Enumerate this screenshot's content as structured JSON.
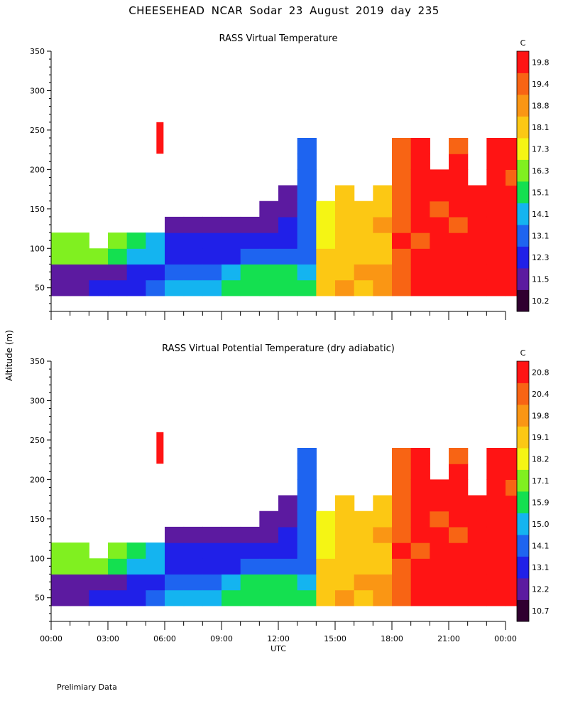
{
  "header": {
    "title": "CHEESEHEAD   NCAR Sodar   23 August 2019   day 235"
  },
  "footer": {
    "note": "Prelimiary Data"
  },
  "shared": {
    "ylabel": "Altitude (m)",
    "xlabel": "UTC",
    "x_ticks": [
      "00:00",
      "03:00",
      "06:00",
      "09:00",
      "12:00",
      "15:00",
      "18:00",
      "21:00",
      "00:00"
    ],
    "x_range_hours": [
      0,
      24
    ],
    "y_ticks": [
      50,
      100,
      150,
      200,
      250,
      300,
      350
    ],
    "y_range": [
      20,
      350
    ]
  },
  "chart_data": [
    {
      "type": "heatmap",
      "title": "RASS Virtual Temperature",
      "xlabel": "UTC",
      "ylabel": "Altitude (m)",
      "x_ticks": [
        "00:00",
        "03:00",
        "06:00",
        "09:00",
        "12:00",
        "15:00",
        "18:00",
        "21:00",
        "00:00"
      ],
      "y_ticks": [
        50,
        100,
        150,
        200,
        250,
        300,
        350
      ],
      "ylim": [
        20,
        350
      ],
      "colorbar_unit": "C",
      "colorbar_levels": [
        10.2,
        11.5,
        12.3,
        13.1,
        14.1,
        15.1,
        16.3,
        17.3,
        18.1,
        18.8,
        19.4,
        19.8
      ],
      "colors": [
        "#300030",
        "#5c1aa0",
        "#2020e8",
        "#1e64f0",
        "#14b4f0",
        "#14e050",
        "#80f020",
        "#f5f514",
        "#fcc814",
        "#fa9614",
        "#f86414",
        "#ff1414"
      ],
      "data_top_height_m": [
        120,
        120,
        100,
        120,
        120,
        120,
        140,
        140,
        140,
        140,
        140,
        160,
        180,
        240,
        160,
        180,
        160,
        180,
        240,
        240,
        200,
        240,
        180,
        240,
        240
      ],
      "field_columns": [
        [
          1,
          1,
          6,
          6,
          6,
          6
        ],
        [
          1,
          1,
          6,
          6,
          6,
          6
        ],
        [
          2,
          1,
          6,
          6,
          6,
          6
        ],
        [
          2,
          1,
          5,
          6,
          6,
          6
        ],
        [
          2,
          2,
          4,
          5,
          6,
          6
        ],
        [
          3,
          2,
          4,
          4,
          5,
          5
        ],
        [
          4,
          3,
          2,
          2,
          1,
          1,
          1,
          1
        ],
        [
          4,
          3,
          2,
          2,
          1,
          1,
          1,
          1
        ],
        [
          4,
          3,
          2,
          2,
          1,
          1,
          1,
          1
        ],
        [
          5,
          4,
          2,
          2,
          1,
          1,
          1,
          1
        ],
        [
          5,
          5,
          3,
          2,
          1,
          1,
          1,
          1
        ],
        [
          5,
          5,
          3,
          2,
          1,
          1,
          1,
          1,
          1,
          1
        ],
        [
          5,
          5,
          3,
          2,
          2,
          1,
          1,
          1,
          1,
          1,
          1,
          1
        ],
        [
          5,
          4,
          3,
          3,
          3,
          3,
          3,
          3,
          3,
          3,
          3,
          3,
          3,
          3,
          3,
          3,
          3,
          3,
          3,
          3,
          3,
          3
        ],
        [
          8,
          8,
          8,
          7,
          7,
          7,
          7,
          7,
          7,
          7,
          7,
          7,
          7,
          7
        ],
        [
          9,
          8,
          8,
          8,
          8,
          8,
          8,
          8,
          8,
          8,
          8,
          8,
          8,
          8,
          8,
          8
        ],
        [
          8,
          9,
          8,
          8,
          8,
          8,
          8,
          8,
          8,
          8,
          8,
          8,
          8,
          8
        ],
        [
          9,
          9,
          8,
          8,
          9,
          8,
          8,
          8,
          8,
          8,
          8,
          8,
          8,
          8,
          8,
          8
        ],
        [
          10,
          10,
          10,
          11,
          10,
          10,
          10,
          10,
          10,
          10,
          9,
          10,
          10,
          10,
          11,
          11,
          10,
          10,
          10,
          10,
          10,
          9
        ],
        [
          11,
          11,
          11,
          10,
          11,
          11,
          11,
          11,
          11,
          11,
          11,
          11,
          11,
          11,
          11,
          10,
          10,
          10,
          11,
          11,
          10,
          9
        ],
        [
          11,
          11,
          11,
          11,
          11,
          10,
          11,
          11,
          11,
          11,
          10,
          10,
          10,
          10,
          9,
          9,
          9,
          9
        ],
        [
          11,
          11,
          11,
          11,
          10,
          11,
          11,
          11,
          11,
          10,
          10,
          10,
          10,
          10,
          10,
          10,
          10,
          9,
          9,
          9,
          9,
          9
        ],
        [
          11,
          11,
          11,
          11,
          11,
          11,
          11,
          10,
          11,
          11,
          10,
          10,
          10,
          10,
          9,
          9,
          9,
          9
        ],
        [
          11,
          11,
          11,
          11,
          11,
          11,
          11,
          11,
          11,
          11,
          11,
          11,
          11,
          11,
          10,
          11,
          11,
          10,
          11,
          10,
          11,
          10
        ],
        [
          11,
          11,
          11,
          11,
          11,
          11,
          11,
          10,
          11,
          11,
          10,
          10,
          10,
          10,
          10,
          10,
          10,
          10,
          10,
          10,
          10,
          10
        ]
      ]
    },
    {
      "type": "heatmap",
      "title": "RASS Virtual Potential Temperature (dry adiabatic)",
      "xlabel": "UTC",
      "ylabel": "Altitude (m)",
      "x_ticks": [
        "00:00",
        "03:00",
        "06:00",
        "09:00",
        "12:00",
        "15:00",
        "18:00",
        "21:00",
        "00:00"
      ],
      "y_ticks": [
        50,
        100,
        150,
        200,
        250,
        300,
        350
      ],
      "ylim": [
        20,
        350
      ],
      "colorbar_unit": "C",
      "colorbar_levels": [
        10.7,
        12.2,
        13.1,
        14.1,
        15.0,
        15.9,
        17.1,
        18.2,
        19.1,
        19.8,
        20.4,
        20.8
      ],
      "colors": [
        "#300030",
        "#5c1aa0",
        "#2020e8",
        "#1e64f0",
        "#14b4f0",
        "#14e050",
        "#80f020",
        "#f5f514",
        "#fcc814",
        "#fa9614",
        "#f86414",
        "#ff1414"
      ],
      "data_top_height_m": [
        120,
        120,
        100,
        120,
        120,
        120,
        140,
        140,
        140,
        140,
        140,
        160,
        180,
        240,
        160,
        180,
        160,
        180,
        240,
        240,
        200,
        240,
        180,
        240,
        240
      ],
      "field_columns": [
        [
          1,
          1,
          6,
          6,
          6,
          6
        ],
        [
          1,
          1,
          6,
          6,
          6,
          6
        ],
        [
          2,
          1,
          6,
          6,
          6,
          6
        ],
        [
          2,
          1,
          5,
          6,
          6,
          6
        ],
        [
          2,
          2,
          4,
          5,
          6,
          6
        ],
        [
          3,
          2,
          4,
          4,
          5,
          5
        ],
        [
          4,
          3,
          2,
          2,
          1,
          1,
          1,
          1
        ],
        [
          4,
          3,
          2,
          2,
          1,
          1,
          1,
          1
        ],
        [
          4,
          3,
          2,
          2,
          1,
          1,
          1,
          1
        ],
        [
          5,
          4,
          2,
          2,
          1,
          1,
          1,
          1
        ],
        [
          5,
          5,
          3,
          2,
          1,
          1,
          1,
          1
        ],
        [
          5,
          5,
          3,
          2,
          1,
          1,
          1,
          1,
          1,
          1
        ],
        [
          5,
          5,
          3,
          2,
          2,
          1,
          1,
          1,
          1,
          1,
          1,
          1
        ],
        [
          5,
          4,
          3,
          3,
          3,
          3,
          3,
          3,
          3,
          3,
          3,
          3,
          3,
          3,
          3,
          3,
          3,
          3,
          3,
          3,
          3,
          3
        ],
        [
          8,
          8,
          8,
          7,
          7,
          7,
          7,
          7,
          7,
          7,
          7,
          7,
          7,
          7
        ],
        [
          9,
          8,
          8,
          8,
          8,
          8,
          8,
          8,
          8,
          8,
          8,
          8,
          8,
          8,
          8,
          8
        ],
        [
          8,
          9,
          8,
          8,
          8,
          8,
          8,
          8,
          8,
          8,
          8,
          8,
          8,
          8
        ],
        [
          9,
          9,
          8,
          8,
          9,
          8,
          8,
          8,
          8,
          8,
          8,
          8,
          8,
          8,
          8,
          8
        ],
        [
          10,
          10,
          10,
          11,
          10,
          10,
          10,
          10,
          10,
          10,
          9,
          10,
          10,
          10,
          11,
          11,
          10,
          10,
          10,
          10,
          10,
          9
        ],
        [
          11,
          11,
          11,
          10,
          11,
          11,
          11,
          11,
          11,
          11,
          11,
          11,
          11,
          11,
          11,
          10,
          10,
          10,
          11,
          11,
          10,
          9
        ],
        [
          11,
          11,
          11,
          11,
          11,
          10,
          11,
          11,
          11,
          11,
          10,
          10,
          10,
          10,
          9,
          9,
          9,
          9
        ],
        [
          11,
          11,
          11,
          11,
          10,
          11,
          11,
          11,
          11,
          10,
          10,
          10,
          10,
          10,
          10,
          10,
          10,
          9,
          9,
          9,
          9,
          9
        ],
        [
          11,
          11,
          11,
          11,
          11,
          11,
          11,
          10,
          11,
          11,
          10,
          10,
          10,
          10,
          9,
          9,
          9,
          9
        ],
        [
          11,
          11,
          11,
          11,
          11,
          11,
          11,
          11,
          11,
          11,
          11,
          11,
          11,
          11,
          10,
          11,
          11,
          10,
          11,
          10,
          11,
          10
        ],
        [
          11,
          11,
          11,
          11,
          11,
          11,
          11,
          10,
          11,
          11,
          10,
          10,
          10,
          10,
          10,
          10,
          10,
          10,
          10,
          10,
          10,
          10
        ]
      ]
    }
  ]
}
